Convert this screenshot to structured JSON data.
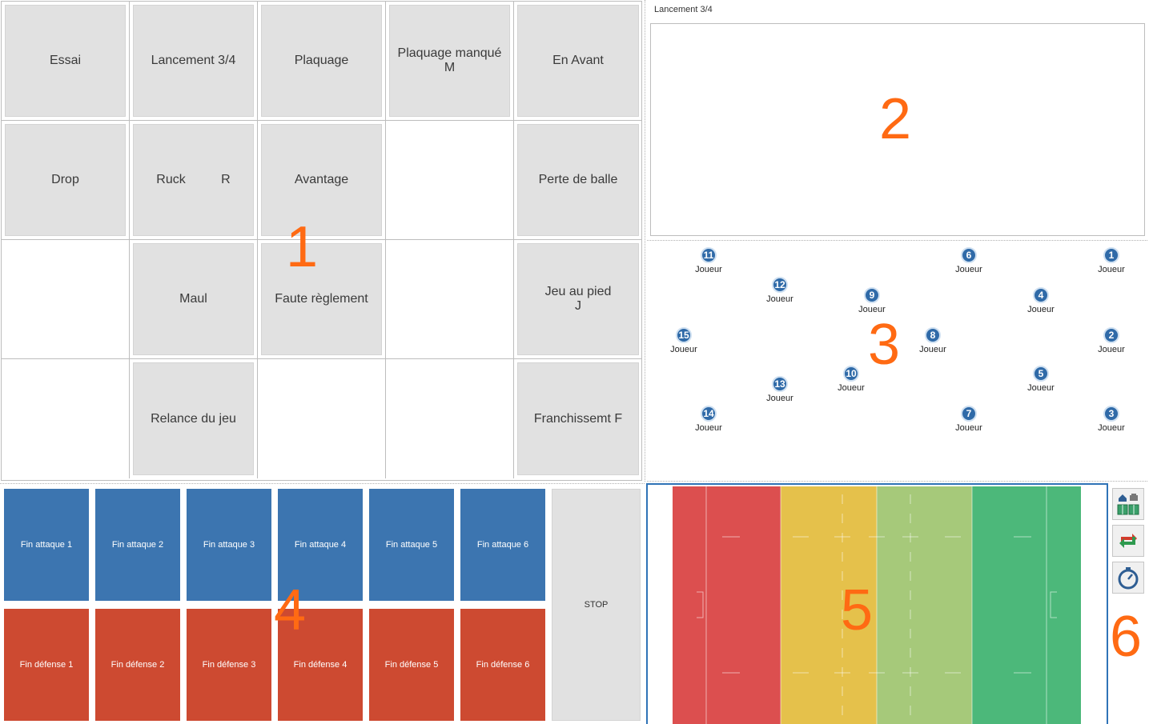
{
  "actions": {
    "r1": [
      "Essai",
      "Lancement 3/4",
      "Plaquage",
      "Plaquage manqué\nM",
      "En Avant"
    ],
    "r2": [
      "Drop",
      "Ruck          R",
      "Avantage",
      "",
      "Perte de balle"
    ],
    "r3": [
      "",
      "Maul",
      "Faute règlement",
      "",
      "Jeu au pied\nJ"
    ],
    "r4": [
      "",
      "Relance du jeu",
      "",
      "",
      "Franchissemt F"
    ]
  },
  "sequence": {
    "label": "Lancement 3/4"
  },
  "players": {
    "label": "Joueur",
    "numbers": [
      "1",
      "2",
      "3",
      "4",
      "5",
      "6",
      "7",
      "8",
      "9",
      "10",
      "11",
      "12",
      "13",
      "14",
      "15"
    ]
  },
  "end_buttons": {
    "attack": [
      "Fin attaque 1",
      "Fin attaque 2",
      "Fin attaque 3",
      "Fin attaque 4",
      "Fin attaque 5",
      "Fin attaque 6"
    ],
    "defense": [
      "Fin défense 1",
      "Fin défense 2",
      "Fin défense 3",
      "Fin défense 4",
      "Fin défense 5",
      "Fin défense 6"
    ],
    "stop": "STOP"
  },
  "field": {
    "zone_colors": [
      "#dc4f4f",
      "#e5c14b",
      "#a6c97a",
      "#4cb87a"
    ]
  },
  "tools": [
    {
      "icon": "home-away-team-icon"
    },
    {
      "icon": "swap-arrows-icon"
    },
    {
      "icon": "stopwatch-icon"
    }
  ],
  "annotations": [
    "1",
    "2",
    "3",
    "4",
    "5",
    "6"
  ],
  "colors": {
    "attack": "#3c75b0",
    "defense": "#cd4a31",
    "player_badge": "#2f6aa8",
    "annotation": "#ff6a13"
  }
}
